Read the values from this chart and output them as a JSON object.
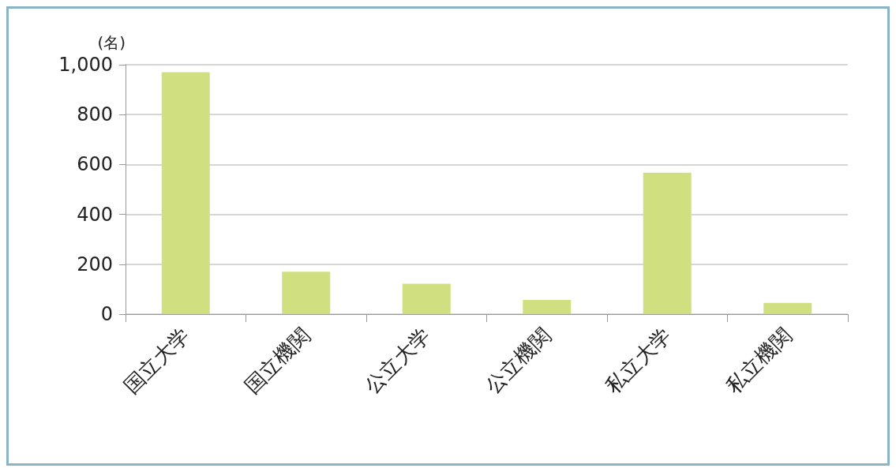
{
  "chart_data": {
    "type": "bar",
    "ylabel": "(名)",
    "categories": [
      "国立大学",
      "国立機関",
      "公立大学",
      "公立機関",
      "私立大学",
      "私立機関"
    ],
    "values": [
      970,
      170,
      122,
      57,
      567,
      45
    ],
    "color": "#d0df80",
    "ylim": [
      0,
      1000
    ],
    "yticks": [
      0,
      200,
      400,
      600,
      800,
      {
        "value": 1000,
        "label": "1,000"
      }
    ],
    "grid": "y"
  }
}
